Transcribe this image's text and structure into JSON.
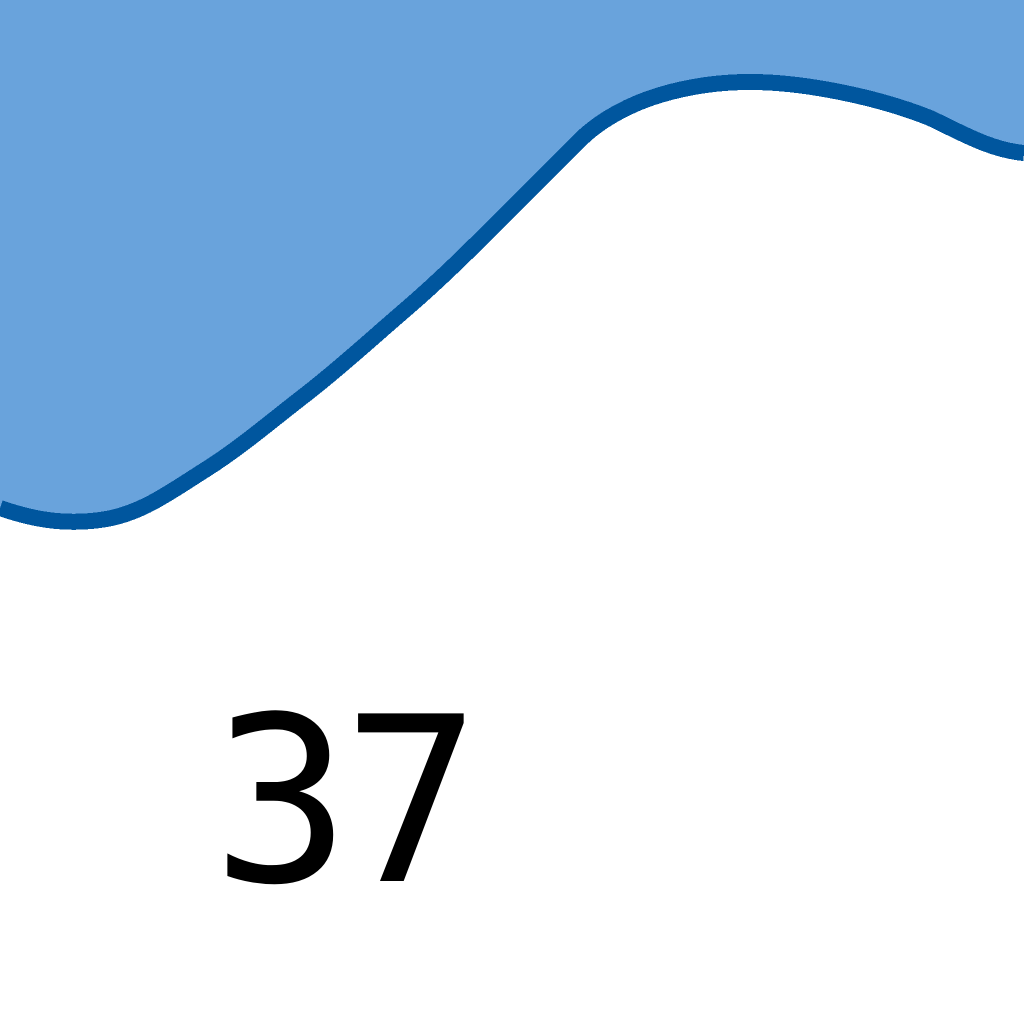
{
  "label": {
    "text": "37"
  },
  "colors": {
    "fill": "#69a3dc",
    "stroke": "#00569e",
    "background": "#ffffff",
    "text": "#000000"
  }
}
